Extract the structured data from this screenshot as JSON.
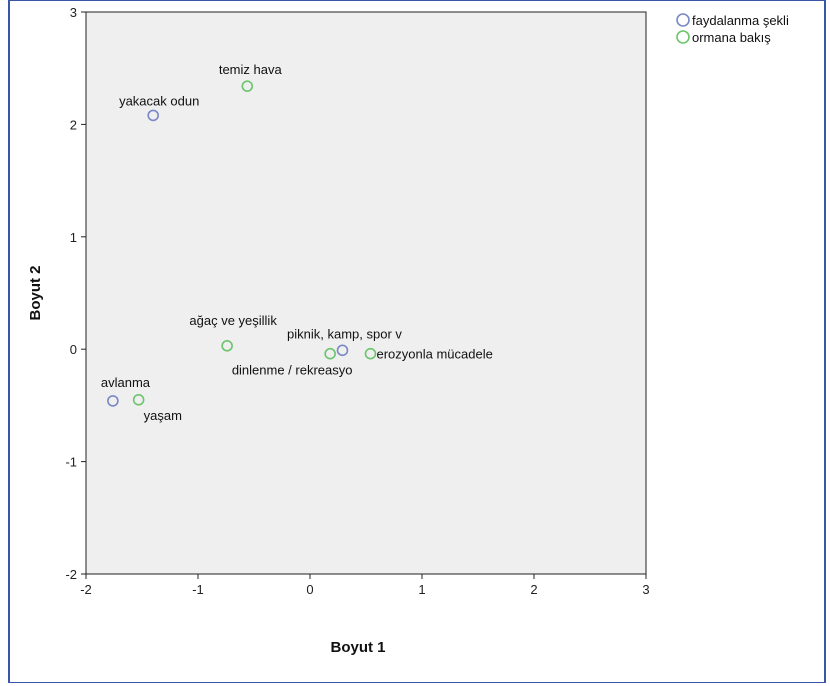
{
  "chart_data": {
    "type": "scatter",
    "title": "",
    "xlabel": "Boyut 1",
    "ylabel": "Boyut 2",
    "xlim": [
      -2,
      3
    ],
    "ylim": [
      -2,
      3
    ],
    "x_ticks": [
      "-2",
      "-1",
      "0",
      "1",
      "2",
      "3"
    ],
    "y_ticks": [
      "-2",
      "-1",
      "0",
      "1",
      "2",
      "3"
    ],
    "grid": false,
    "legend_position": "top-right, outside plot",
    "series": [
      {
        "name": "faydalanma şekli",
        "color": "#7a88c8",
        "points": [
          {
            "label": "yakacak odun",
            "x": -1.4,
            "y": 2.08
          },
          {
            "label": "piknik, kamp, spor v",
            "x": 0.29,
            "y": -0.01
          },
          {
            "label": "avlanma",
            "x": -1.76,
            "y": -0.46
          }
        ]
      },
      {
        "name": "ormana bakış",
        "color": "#6cc46c",
        "points": [
          {
            "label": "temiz hava",
            "x": -0.56,
            "y": 2.34
          },
          {
            "label": "ağaç ve yeşillik",
            "x": -0.74,
            "y": 0.03
          },
          {
            "label": "dinlenme / rekreasyo",
            "x": 0.18,
            "y": -0.04
          },
          {
            "label": "erozyonla mücadele",
            "x": 0.54,
            "y": -0.04
          },
          {
            "label": "yaşam",
            "x": -1.53,
            "y": -0.45
          }
        ]
      }
    ]
  }
}
